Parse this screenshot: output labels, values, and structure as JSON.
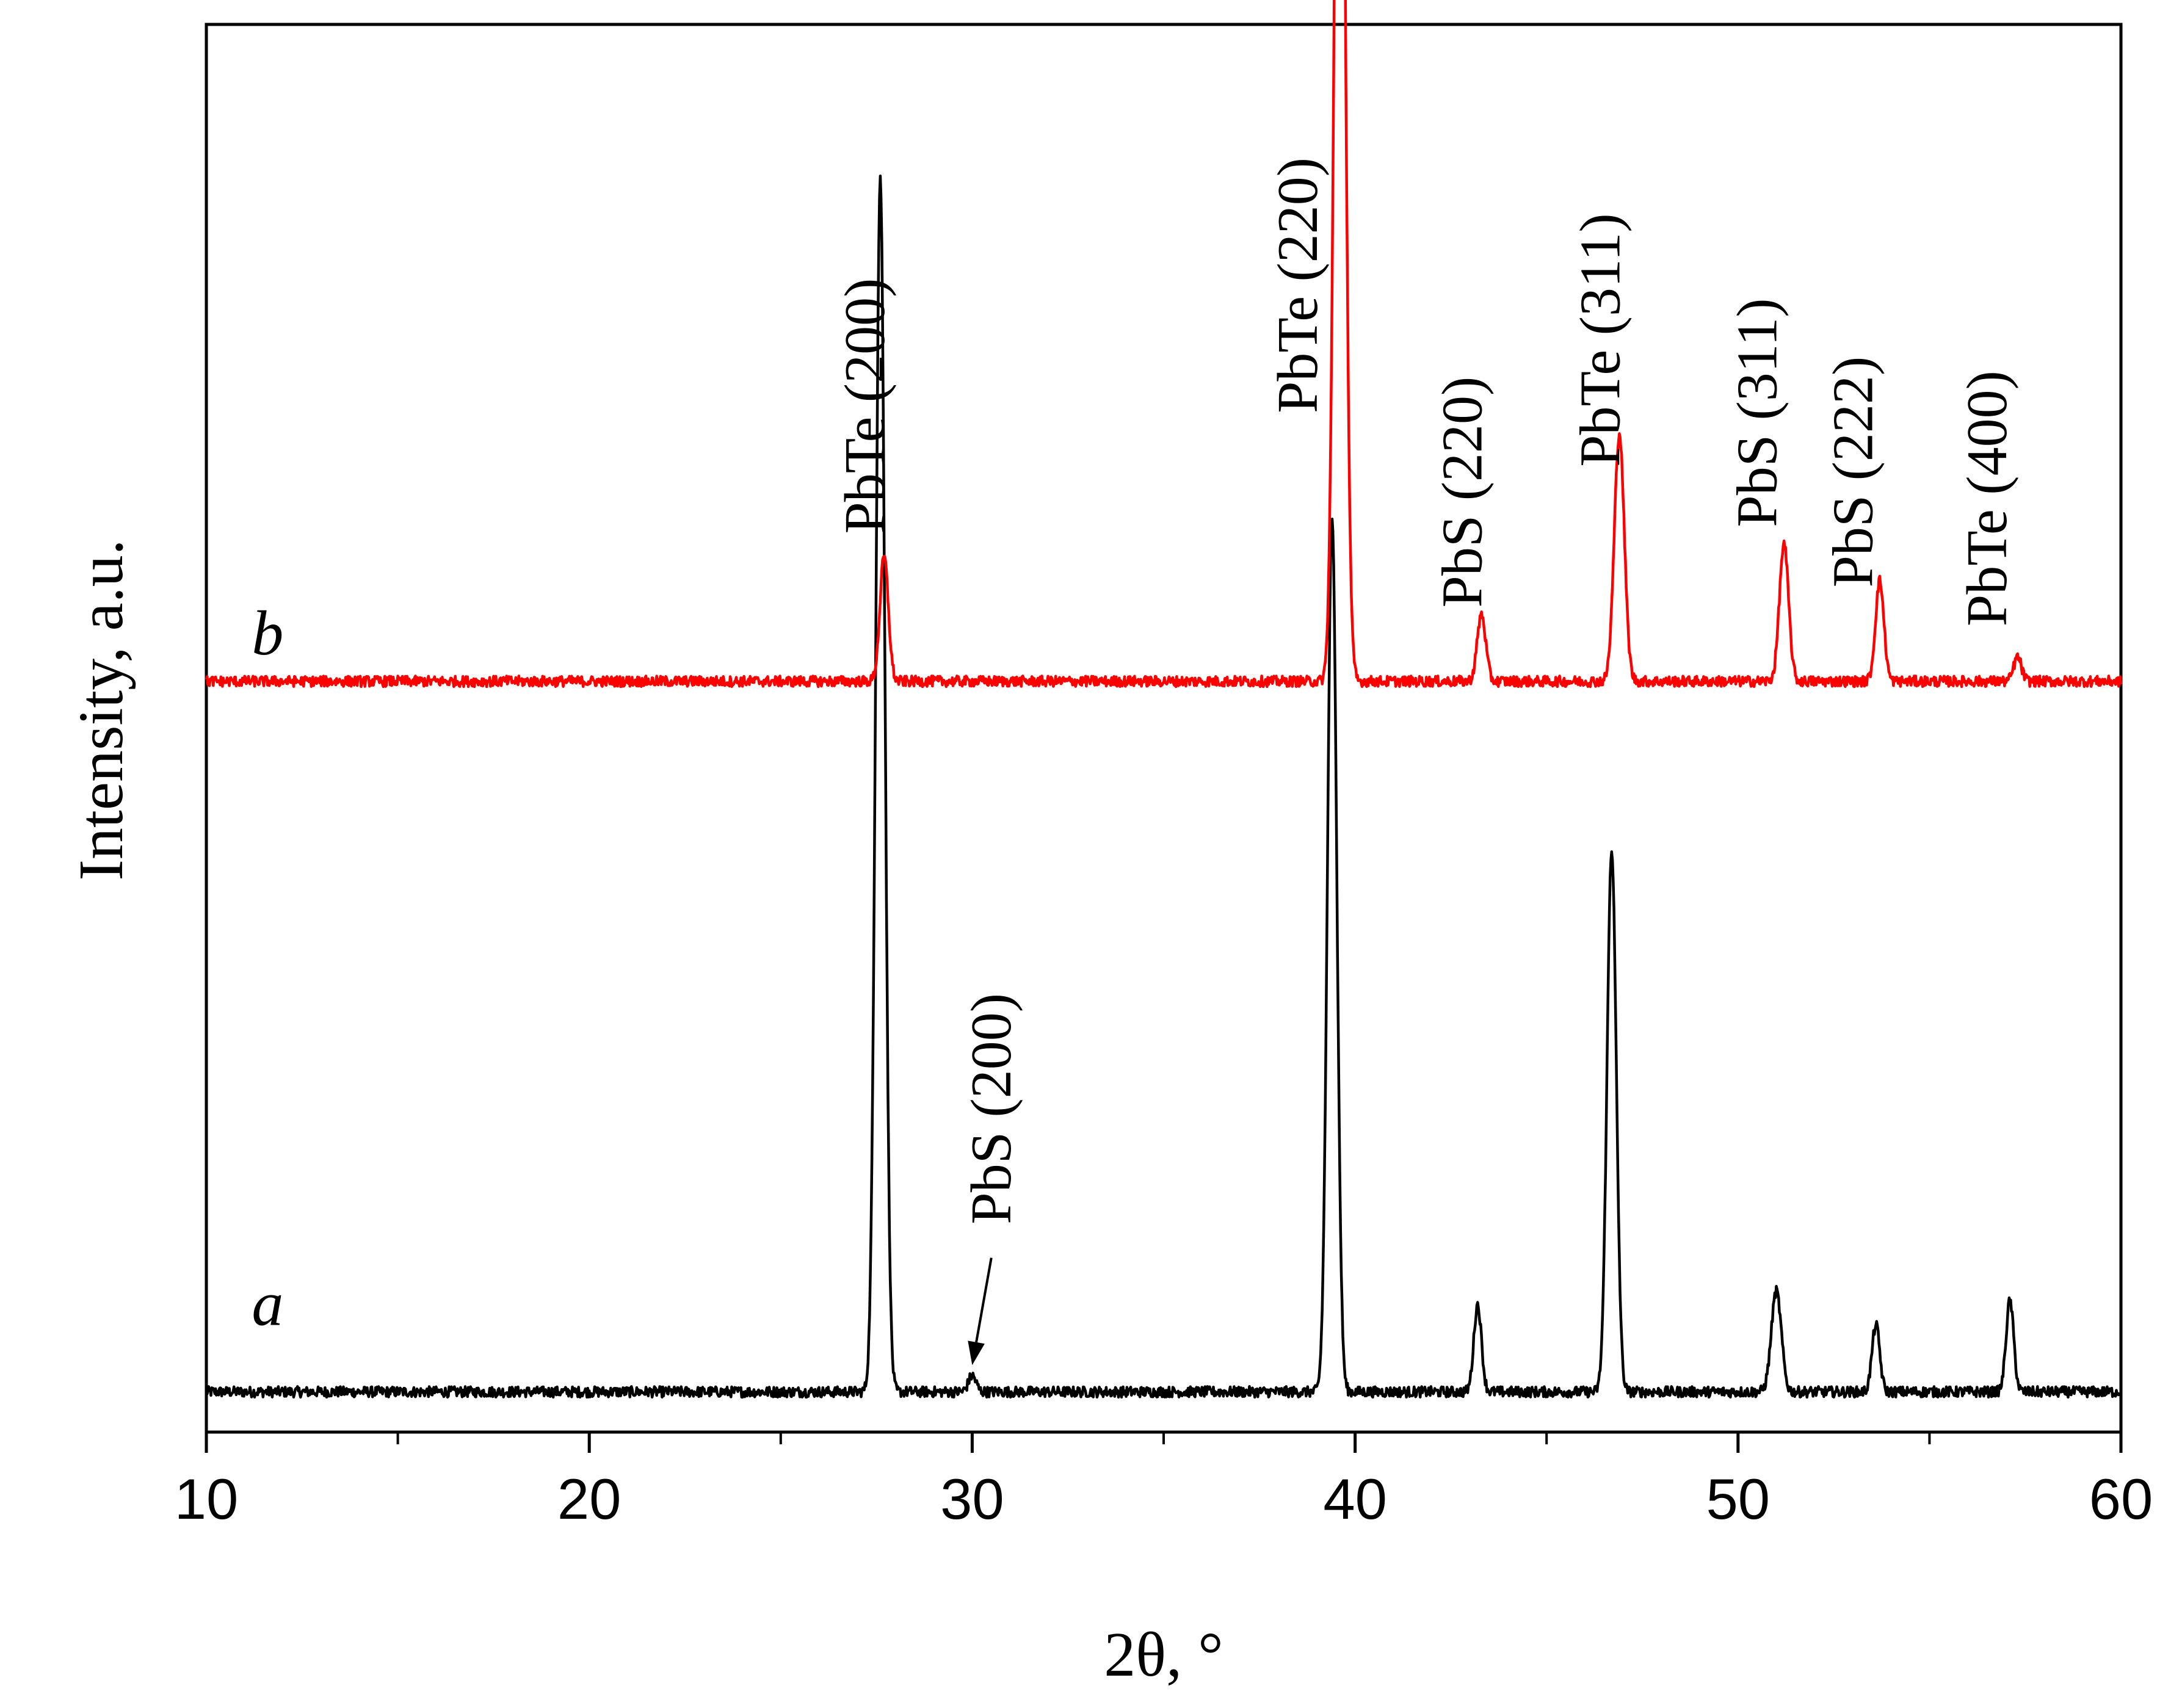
{
  "chart_data": {
    "type": "line",
    "title": "",
    "xlabel": "2θ, °",
    "ylabel": "Intensity, a.u.",
    "xlim": [
      10,
      60
    ],
    "ylim": [
      -0.03,
      1.02
    ],
    "x_major_ticks": [
      10,
      20,
      30,
      40,
      50,
      60
    ],
    "x_tick_labels": [
      "10",
      "20",
      "30",
      "40",
      "50",
      "60"
    ],
    "x_minor_ticks": [
      15,
      25,
      35,
      45,
      55
    ],
    "grid": false,
    "legend": "none",
    "series": [
      {
        "label": "a",
        "color": "#000000",
        "baseline": 0.0,
        "peaks": [
          {
            "x": 27.6,
            "height": 0.905,
            "width": 0.12
          },
          {
            "x": 30.0,
            "height": 0.012,
            "width": 0.1
          },
          {
            "x": 39.4,
            "height": 0.655,
            "width": 0.12
          },
          {
            "x": 43.2,
            "height": 0.065,
            "width": 0.1
          },
          {
            "x": 46.7,
            "height": 0.405,
            "width": 0.12
          },
          {
            "x": 51.0,
            "height": 0.075,
            "width": 0.13
          },
          {
            "x": 53.6,
            "height": 0.05,
            "width": 0.1
          },
          {
            "x": 57.1,
            "height": 0.068,
            "width": 0.1
          }
        ]
      },
      {
        "label": "b",
        "color": "#ff0000",
        "baseline": 0.53,
        "peaks": [
          {
            "x": 27.7,
            "height": 0.093,
            "width": 0.11
          },
          {
            "x": 39.6,
            "height": 0.965,
            "width": 0.13
          },
          {
            "x": 43.3,
            "height": 0.05,
            "width": 0.11
          },
          {
            "x": 46.9,
            "height": 0.185,
            "width": 0.13
          },
          {
            "x": 51.2,
            "height": 0.102,
            "width": 0.12
          },
          {
            "x": 53.7,
            "height": 0.075,
            "width": 0.11
          },
          {
            "x": 57.3,
            "height": 0.018,
            "width": 0.1
          }
        ]
      }
    ],
    "annotations": [
      {
        "text": "PbTe (200)",
        "x": 27.7,
        "y": 0.64,
        "anchor": "start"
      },
      {
        "text": "PbTe (220)",
        "x": 39.0,
        "y": 0.73,
        "anchor": "start"
      },
      {
        "text": "PbS (220)",
        "x": 43.3,
        "y": 0.585,
        "anchor": "start"
      },
      {
        "text": "PbTe (311)",
        "x": 46.9,
        "y": 0.69,
        "anchor": "start"
      },
      {
        "text": "PbS (311)",
        "x": 51.0,
        "y": 0.645,
        "anchor": "start"
      },
      {
        "text": "PbS (222)",
        "x": 53.5,
        "y": 0.6,
        "anchor": "start"
      },
      {
        "text": "PbTe (400)",
        "x": 57.0,
        "y": 0.571,
        "anchor": "start"
      },
      {
        "text": "PbS (200)",
        "x": 31.0,
        "y": 0.125,
        "anchor": "start"
      }
    ],
    "arrows": [
      {
        "from": [
          30.5,
          0.1
        ],
        "to": [
          30.0,
          0.02
        ]
      }
    ],
    "series_labels": [
      {
        "text": "b",
        "x": 11.6,
        "y": 0.55
      },
      {
        "text": "a",
        "x": 11.6,
        "y": 0.05
      }
    ]
  }
}
